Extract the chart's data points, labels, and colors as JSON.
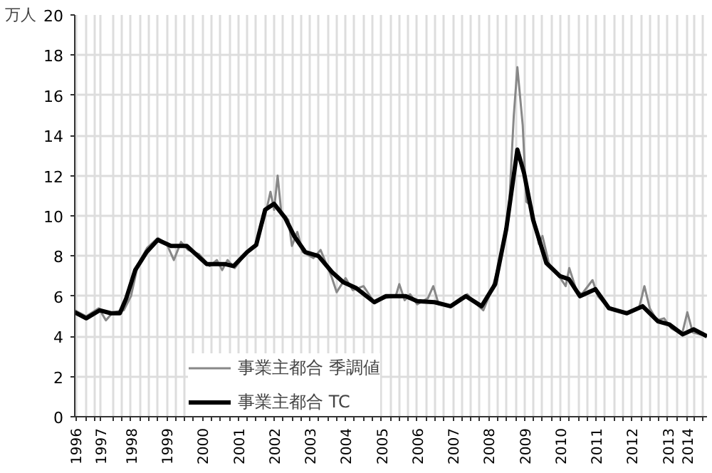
{
  "chart_data": {
    "type": "line",
    "ylabel": "万人",
    "ylim": [
      0,
      20
    ],
    "yticks": [
      0,
      2,
      4,
      6,
      8,
      10,
      12,
      14,
      16,
      18,
      20
    ],
    "xlim": [
      1996.43,
      2014.1
    ],
    "xticks": [
      {
        "value": 1996.45,
        "label": "1996"
      },
      {
        "value": 1996.75,
        "label": null
      },
      {
        "value": 1997.0,
        "label": null
      },
      {
        "value": 1997.15,
        "label": "1997"
      },
      {
        "value": 1997.5,
        "label": null
      },
      {
        "value": 1997.75,
        "label": null
      },
      1998,
      {
        "value": 1998.25,
        "label": null
      },
      {
        "value": 1998.5,
        "label": null
      },
      {
        "value": 1998.75,
        "label": null
      },
      1999,
      {
        "value": 1999.25,
        "label": null
      },
      {
        "value": 1999.5,
        "label": null
      },
      {
        "value": 1999.75,
        "label": null
      },
      2000,
      {
        "value": 2000.25,
        "label": null
      },
      {
        "value": 2000.5,
        "label": null
      },
      {
        "value": 2000.75,
        "label": null
      },
      2001,
      {
        "value": 2001.25,
        "label": null
      },
      {
        "value": 2001.5,
        "label": null
      },
      {
        "value": 2001.75,
        "label": null
      },
      2002,
      {
        "value": 2002.25,
        "label": null
      },
      {
        "value": 2002.5,
        "label": null
      },
      {
        "value": 2002.75,
        "label": null
      },
      2003,
      {
        "value": 2003.25,
        "label": null
      },
      {
        "value": 2003.5,
        "label": null
      },
      {
        "value": 2003.75,
        "label": null
      },
      2004,
      {
        "value": 2004.25,
        "label": null
      },
      {
        "value": 2004.5,
        "label": null
      },
      {
        "value": 2004.75,
        "label": null
      },
      2005,
      {
        "value": 2005.25,
        "label": null
      },
      {
        "value": 2005.5,
        "label": null
      },
      {
        "value": 2005.75,
        "label": null
      },
      2006,
      {
        "value": 2006.25,
        "label": null
      },
      {
        "value": 2006.5,
        "label": null
      },
      {
        "value": 2006.75,
        "label": null
      },
      2007,
      {
        "value": 2007.25,
        "label": null
      },
      {
        "value": 2007.5,
        "label": null
      },
      {
        "value": 2007.75,
        "label": null
      },
      2008,
      {
        "value": 2008.25,
        "label": null
      },
      {
        "value": 2008.5,
        "label": null
      },
      {
        "value": 2008.75,
        "label": null
      },
      2009,
      {
        "value": 2009.25,
        "label": null
      },
      {
        "value": 2009.5,
        "label": null
      },
      {
        "value": 2009.75,
        "label": null
      },
      2010,
      {
        "value": 2010.25,
        "label": null
      },
      {
        "value": 2010.5,
        "label": null
      },
      {
        "value": 2010.75,
        "label": null
      },
      2011,
      {
        "value": 2011.25,
        "label": null
      },
      {
        "value": 2011.5,
        "label": null
      },
      {
        "value": 2011.75,
        "label": null
      },
      2012,
      {
        "value": 2012.25,
        "label": null
      },
      {
        "value": 2012.5,
        "label": null
      },
      {
        "value": 2012.75,
        "label": null
      },
      2013,
      {
        "value": 2013.25,
        "label": null
      },
      {
        "value": 2013.55,
        "label": "2014"
      },
      {
        "value": 2013.75,
        "label": null
      },
      {
        "value": 2014.0,
        "label": null
      }
    ],
    "grid": true,
    "legend": "bottom",
    "line_style": "solid",
    "series": [
      {
        "name": "事業主都合 季調値",
        "color": "#888888",
        "x": [
          1996.43,
          1996.75,
          1997.1,
          1997.3,
          1997.5,
          1997.8,
          1998.0,
          1998.2,
          1998.45,
          1998.75,
          1999.0,
          1999.2,
          1999.4,
          1999.6,
          1999.9,
          2000.2,
          2000.4,
          2000.55,
          2000.7,
          2000.9,
          2001.2,
          2001.5,
          2001.75,
          2001.9,
          2002.0,
          2002.1,
          2002.2,
          2002.4,
          2002.5,
          2002.65,
          2002.8,
          2003.1,
          2003.3,
          2003.6,
          2003.75,
          2004.0,
          2004.2,
          2004.5,
          2004.8,
          2005.1,
          2005.4,
          2005.5,
          2005.65,
          2005.8,
          2006.0,
          2006.3,
          2006.45,
          2006.6,
          2006.9,
          2007.2,
          2007.4,
          2007.6,
          2007.85,
          2008.1,
          2008.35,
          2008.55,
          2008.7,
          2008.8,
          2008.95,
          2009.05,
          2009.2,
          2009.4,
          2009.5,
          2009.7,
          2010.0,
          2010.15,
          2010.25,
          2010.45,
          2010.6,
          2010.9,
          2011.05,
          2011.3,
          2011.6,
          2011.9,
          2012.2,
          2012.35,
          2012.5,
          2012.7,
          2012.9,
          2013.1,
          2013.4,
          2013.55,
          2013.7,
          2014.1
        ],
        "values": [
          5.3,
          5.0,
          5.4,
          4.8,
          5.2,
          5.3,
          6.0,
          7.6,
          8.4,
          8.9,
          8.6,
          7.8,
          8.7,
          8.3,
          8.1,
          7.5,
          7.8,
          7.3,
          7.8,
          7.4,
          8.1,
          8.6,
          10.0,
          11.2,
          10.3,
          12.0,
          10.2,
          9.8,
          8.5,
          9.2,
          8.2,
          7.9,
          8.3,
          7.0,
          6.2,
          6.9,
          6.3,
          6.5,
          5.7,
          5.9,
          6.0,
          6.6,
          5.8,
          6.1,
          5.6,
          5.9,
          6.5,
          5.6,
          5.5,
          5.9,
          6.1,
          5.7,
          5.3,
          6.4,
          8.0,
          9.8,
          15.0,
          17.4,
          14.5,
          10.7,
          10.5,
          8.6,
          9.0,
          7.5,
          6.9,
          6.5,
          7.4,
          6.3,
          6.1,
          6.8,
          6.0,
          5.5,
          5.3,
          5.2,
          5.4,
          6.5,
          5.4,
          4.8,
          4.9,
          4.4,
          4.1,
          5.2,
          4.2,
          4.0
        ]
      },
      {
        "name": "事業主都合 TC",
        "color": "#000000",
        "x": [
          1996.43,
          1996.75,
          1997.13,
          1997.44,
          1997.69,
          1997.87,
          1998.12,
          1998.44,
          1998.75,
          1999.12,
          1999.56,
          1999.87,
          2000.12,
          2000.62,
          2000.87,
          2001.25,
          2001.5,
          2001.75,
          2002.0,
          2002.31,
          2002.56,
          2002.87,
          2003.24,
          2003.62,
          2003.93,
          2004.3,
          2004.8,
          2005.12,
          2005.68,
          2006.0,
          2006.49,
          2006.93,
          2007.36,
          2007.8,
          2008.18,
          2008.49,
          2008.8,
          2008.99,
          2009.24,
          2009.61,
          2009.99,
          2010.24,
          2010.55,
          2010.98,
          2011.36,
          2011.86,
          2012.3,
          2012.73,
          2013.04,
          2013.42,
          2013.73,
          2014.1
        ],
        "values": [
          5.2,
          4.9,
          5.3,
          5.15,
          5.15,
          5.9,
          7.3,
          8.2,
          8.8,
          8.5,
          8.5,
          8.0,
          7.6,
          7.6,
          7.5,
          8.2,
          8.55,
          10.3,
          10.6,
          9.9,
          9.0,
          8.2,
          8.0,
          7.2,
          6.7,
          6.4,
          5.7,
          6.0,
          6.0,
          5.75,
          5.7,
          5.5,
          6.0,
          5.5,
          6.6,
          9.35,
          13.3,
          12.1,
          9.8,
          7.65,
          7.0,
          6.85,
          6.0,
          6.35,
          5.4,
          5.15,
          5.5,
          4.75,
          4.6,
          4.1,
          4.35,
          4.0
        ]
      }
    ]
  }
}
